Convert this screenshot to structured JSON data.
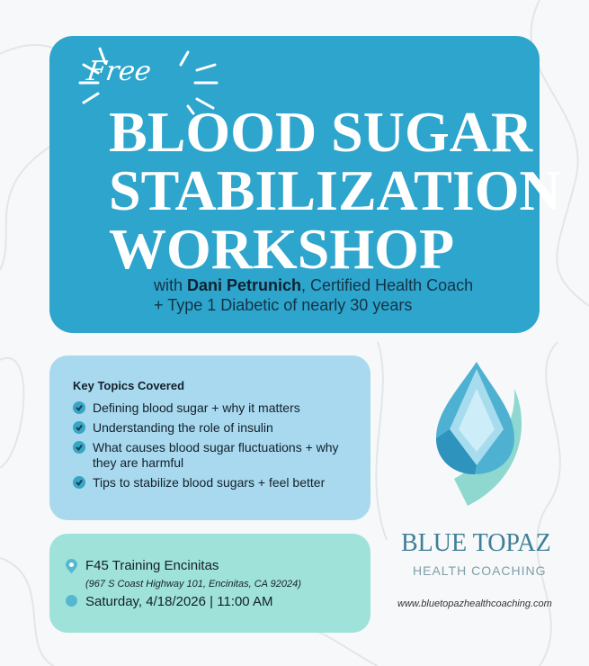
{
  "header": {
    "badge": "Free",
    "title_lines": [
      "BLOOD SUGAR",
      "STABILIZATION",
      "WORKSHOP"
    ],
    "subtitle_prefix": "with ",
    "host": "Dani Petrunich",
    "subtitle_rest": ", Certified Health Coach",
    "subtitle_line2": "+ Type 1 Diabetic of nearly 30 years"
  },
  "topics": {
    "heading": "Key Topics Covered",
    "items": [
      "Defining blood sugar + why it matters",
      "Understanding the role of insulin",
      "What causes blood sugar fluctuations + why they are harmful",
      "Tips to stabilize blood sugars + feel better"
    ]
  },
  "event": {
    "venue": "F45 Training Encinitas",
    "address": "(967 S Coast Highway 101, Encinitas, CA 92024)",
    "datetime": "Saturday, 4/18/2026 | 11:00 AM",
    "icons": [
      "location-pin-icon",
      "calendar-icon"
    ]
  },
  "brand": {
    "name": "BLUE TOPAZ",
    "tagline": "HEALTH COACHING",
    "url": "www.bluetopazhealthcoaching.com"
  },
  "colors": {
    "hero": "#2ea5cc",
    "topics": "#a8d9ef",
    "event": "#9fe2d9",
    "brand": "#3f7f97"
  }
}
